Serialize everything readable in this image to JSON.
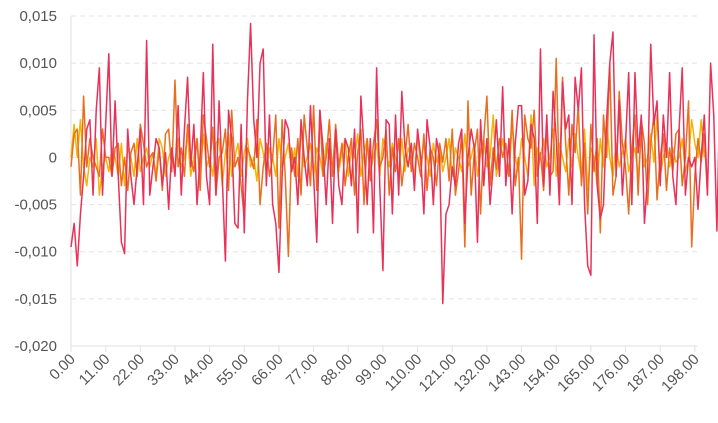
{
  "chart_data": {
    "type": "line",
    "title": "",
    "xlabel": "",
    "ylabel": "",
    "xlim": [
      0,
      199
    ],
    "ylim": [
      -0.02,
      0.015
    ],
    "grid": true,
    "legend": "none",
    "x_tick_labels": [
      "0.00",
      "11.00",
      "22.00",
      "33.00",
      "44.00",
      "55.00",
      "66.00",
      "77.00",
      "88.00",
      "99.00",
      "110.00",
      "121.00",
      "132.00",
      "143.00",
      "154.00",
      "165.00",
      "176.00",
      "187.00",
      "198.00"
    ],
    "x_tick_values": [
      0,
      11,
      22,
      33,
      44,
      55,
      66,
      77,
      88,
      99,
      110,
      121,
      132,
      143,
      154,
      165,
      176,
      187,
      198
    ],
    "y_tick_labels": [
      "0,015",
      "0,010",
      "0,005",
      "0",
      "-0,005",
      "-0,010",
      "-0,015",
      "-0,020"
    ],
    "y_tick_values": [
      0.015,
      0.01,
      0.005,
      0,
      -0.005,
      -0.01,
      -0.015,
      -0.02
    ],
    "series": [
      {
        "color": "#e8325a",
        "values": [
          -0.0095,
          -0.007,
          -0.0115,
          -0.006,
          -0.002,
          0.003,
          0.004,
          -0.004,
          0.005,
          0.0095,
          -0.004,
          0.0035,
          0.011,
          -0.002,
          0.006,
          -0.002,
          -0.009,
          -0.0102,
          0.003,
          -0.002,
          -0.005,
          -0.001,
          0.003,
          -0.005,
          0.0124,
          -0.004,
          -0.001,
          0.002,
          0.001,
          -0.003,
          0.0005,
          -0.0055,
          0.001,
          -0.002,
          0.0055,
          -0.004,
          0.003,
          0.0085,
          -0.001,
          0.0035,
          -0.005,
          0.0002,
          0.009,
          -0.002,
          -0.005,
          0.012,
          -0.004,
          0.006,
          -0.002,
          -0.011,
          0.005,
          0.002,
          -0.007,
          -0.0075,
          0.0035,
          -0.008,
          0.006,
          0.0142,
          0.004,
          0.0,
          0.01,
          0.0115,
          -0.003,
          0.0045,
          -0.005,
          -0.007,
          -0.0122,
          -0.002,
          0.004,
          0.003,
          -0.0015,
          0.0,
          -0.005,
          0.004,
          0.0,
          -0.003,
          0.0055,
          -0.002,
          -0.009,
          0.005,
          0.001,
          -0.005,
          0.002,
          -0.007,
          0.003,
          -0.003,
          -0.005,
          0.002,
          0.001,
          -0.003,
          0.003,
          -0.008,
          0.0065,
          0.001,
          -0.005,
          0.002,
          -0.008,
          0.0095,
          -0.003,
          -0.012,
          0.004,
          0.0035,
          -0.006,
          0.0045,
          -0.004,
          0.007,
          0.001,
          -0.001,
          0.0015,
          -0.0035,
          0.003,
          0.0,
          -0.006,
          0.004,
          0.001,
          -0.005,
          0.002,
          0.0,
          -0.0155,
          -0.006,
          -0.005,
          -0.001,
          -0.003,
          0.0015,
          0.003,
          -0.007,
          0.0,
          0.003,
          0.001,
          -0.009,
          0.004,
          -0.003,
          0.002,
          -0.005,
          -0.001,
          0.004,
          -0.002,
          0.0075,
          -0.003,
          0.002,
          -0.006,
          0.0015,
          0.0055,
          0.0055,
          -0.004,
          -0.0025,
          0.0035,
          0.002,
          -0.007,
          0.0115,
          -0.003,
          0.0045,
          -0.004,
          0.007,
          0.002,
          -0.005,
          0.008,
          0.003,
          0.0045,
          -0.005,
          0.0085,
          0.005,
          0.0095,
          -0.005,
          -0.0115,
          -0.0125,
          0.013,
          -0.003,
          -0.0065,
          -0.005,
          0.004,
          0.01,
          0.0133,
          -0.002,
          0.006,
          -0.004,
          0.0015,
          0.009,
          -0.005,
          0.009,
          0.0005,
          0.0045,
          -0.007,
          -0.002,
          0.012,
          0.0035,
          0.006,
          -0.003,
          0.0045,
          0.0,
          0.009,
          -0.002,
          -0.005,
          0.003,
          0.0095,
          -0.004,
          0.0,
          -0.001,
          0.0,
          -0.0055,
          0.0,
          0.0045,
          -0.004,
          0.01,
          0.0045,
          -0.0078,
          0.0077
        ]
      },
      {
        "color": "#e86f1e",
        "values": [
          -0.001,
          0.0025,
          0.003,
          -0.004,
          0.0065,
          -0.001,
          0.002,
          0.0,
          -0.001,
          -0.002,
          0.003,
          0.0,
          0.0,
          -0.002,
          0.001,
          0.0015,
          -0.003,
          0.0,
          -0.0035,
          0.0005,
          0.0015,
          -0.002,
          0.0035,
          0.0015,
          -0.001,
          0.0,
          0.0005,
          -0.0025,
          0.001,
          -0.0035,
          0.0025,
          0.003,
          -0.0015,
          0.0082,
          -0.001,
          0.001,
          -0.002,
          0.0035,
          0.0,
          -0.0015,
          0.002,
          -0.0035,
          0.0045,
          0.002,
          -0.001,
          0.0032,
          -0.004,
          0.0,
          0.0005,
          0.003,
          -0.0035,
          0.005,
          -0.001,
          0.0,
          -0.003,
          -0.0065,
          0.001,
          0.0,
          -0.0012,
          0.004,
          -0.005,
          -0.001,
          0.0015,
          -0.002,
          0.0,
          0.0045,
          -0.0075,
          0.004,
          -0.002,
          -0.0105,
          0.001,
          -0.002,
          0.002,
          -0.004,
          0.0045,
          0.001,
          -0.003,
          0.0055,
          -0.0035,
          0.005,
          -0.002,
          0.0,
          0.004,
          -0.002,
          0.0035,
          -0.001,
          0.0015,
          -0.003,
          0.0,
          0.002,
          -0.004,
          0.0005,
          0.003,
          -0.005,
          0.002,
          -0.0025,
          0.0015,
          0.004,
          -0.001,
          0.0,
          0.003,
          -0.004,
          0.001,
          -0.0015,
          0.002,
          -0.003,
          0.0,
          0.0035,
          -0.0015,
          0.0015,
          0.0,
          -0.002,
          0.0025,
          -0.0035,
          0.001,
          0.0,
          -0.003,
          0.0015,
          -0.0005,
          0.002,
          -0.0025,
          0.003,
          -0.004,
          -0.0015,
          0.0025,
          -0.0095,
          0.006,
          -0.004,
          0.0005,
          0.003,
          -0.006,
          0.002,
          0.0065,
          -0.003,
          0.001,
          -0.0012,
          0.002,
          0.0,
          0.0015,
          -0.002,
          0.005,
          -0.003,
          0.0,
          -0.0108,
          0.0045,
          0.002,
          0.001,
          0.005,
          -0.002,
          0.0005,
          -0.0035,
          0.003,
          -0.002,
          -0.0015,
          0.0105,
          -0.003,
          0.0085,
          0.0015,
          -0.004,
          0.0035,
          0.0005,
          0.0055,
          -0.003,
          0.0015,
          -0.006,
          0.0035,
          -0.0015,
          0.002,
          -0.008,
          0.0045,
          0.0,
          0.01,
          -0.004,
          -0.002,
          0.007,
          0.0015,
          -0.001,
          -0.006,
          0.001,
          0.0045,
          -0.004,
          0.004,
          0.0015,
          -0.005,
          0.0015,
          0.0045,
          -0.0045,
          0.0,
          0.0025,
          -0.0035,
          0.001,
          -0.0015,
          0.0025,
          0.003,
          -0.003,
          0.0,
          0.006,
          -0.0095,
          -0.002,
          0.002,
          -0.0005,
          0.0025,
          -0.004
        ]
      },
      {
        "color": "#f5b400",
        "values": [
          0.0,
          0.0035,
          0.0,
          0.004,
          -0.001,
          -0.003,
          0.0,
          -0.001,
          0.002,
          -0.004,
          -0.001,
          0.0,
          -0.0015,
          0.001,
          0.0,
          -0.002,
          0.0015,
          -0.003,
          0.001,
          0.0,
          -0.002,
          0.002,
          -0.0015,
          0.0,
          0.001,
          -0.001,
          0.0005,
          -0.002,
          0.002,
          0.001,
          -0.002,
          0.0,
          0.001,
          -0.0015,
          0.002,
          -0.001,
          0.0,
          0.0025,
          -0.002,
          0.0,
          0.002,
          -0.002,
          0.0025,
          -0.001,
          0.0,
          -0.002,
          0.0015,
          0.002,
          -0.003,
          0.0005,
          0.0025,
          -0.002,
          0.0,
          0.0015,
          -0.002,
          0.0005,
          0.002,
          -0.001,
          0.0,
          -0.0025,
          0.002,
          0.0005,
          -0.0015,
          0.001,
          0.0,
          -0.002,
          0.002,
          -0.001,
          0.0,
          0.0015,
          -0.0015,
          0.001,
          -0.002,
          0.003,
          -0.001,
          0.0,
          0.0015,
          -0.002,
          0.001,
          0.0,
          -0.002,
          0.0015,
          0.0,
          -0.001,
          0.0025,
          -0.0015,
          0.0005,
          0.002,
          -0.002,
          0.001,
          0.0,
          0.0025,
          -0.002,
          0.0005,
          0.002,
          -0.0015,
          0.0,
          0.0015,
          -0.002,
          0.002,
          0.0005,
          -0.001,
          0.0015,
          0.0,
          -0.002,
          0.002,
          -0.0015,
          0.001,
          0.0,
          -0.002,
          0.0025,
          -0.001,
          0.0015,
          0.0,
          -0.002,
          0.0015,
          -0.0005,
          0.001,
          -0.0015,
          0.0,
          0.002,
          -0.002,
          0.001,
          0.0,
          -0.0015,
          0.0025,
          -0.001,
          0.0,
          0.0015,
          -0.002,
          0.0005,
          0.002,
          -0.001,
          0.0,
          0.0045,
          -0.002,
          0.0,
          0.002,
          -0.001,
          -0.002,
          0.0035,
          0.0,
          -0.0015,
          0.002,
          0.0,
          -0.002,
          0.0045,
          -0.003,
          0.001,
          0.0,
          0.002,
          -0.001,
          0.0,
          0.003,
          -0.002,
          0.0015,
          0.0,
          -0.0015,
          0.002,
          -0.001,
          0.0025,
          0.0,
          -0.002,
          0.003,
          -0.0035,
          0.001,
          0.0,
          -0.003,
          0.002,
          -0.001,
          0.004,
          0.0,
          -0.002,
          0.0015,
          -0.001,
          0.0005,
          0.002,
          -0.0015,
          0.0,
          0.001,
          -0.002,
          0.002,
          -0.001,
          0.0,
          0.0025,
          -0.0005,
          0.0045,
          -0.002,
          0.0,
          0.0015,
          -0.001,
          0.001,
          -0.0005,
          0.0,
          0.002,
          -0.0015,
          0.0,
          0.004,
          0.0015,
          0.0,
          0.004,
          0.0
        ]
      }
    ]
  }
}
